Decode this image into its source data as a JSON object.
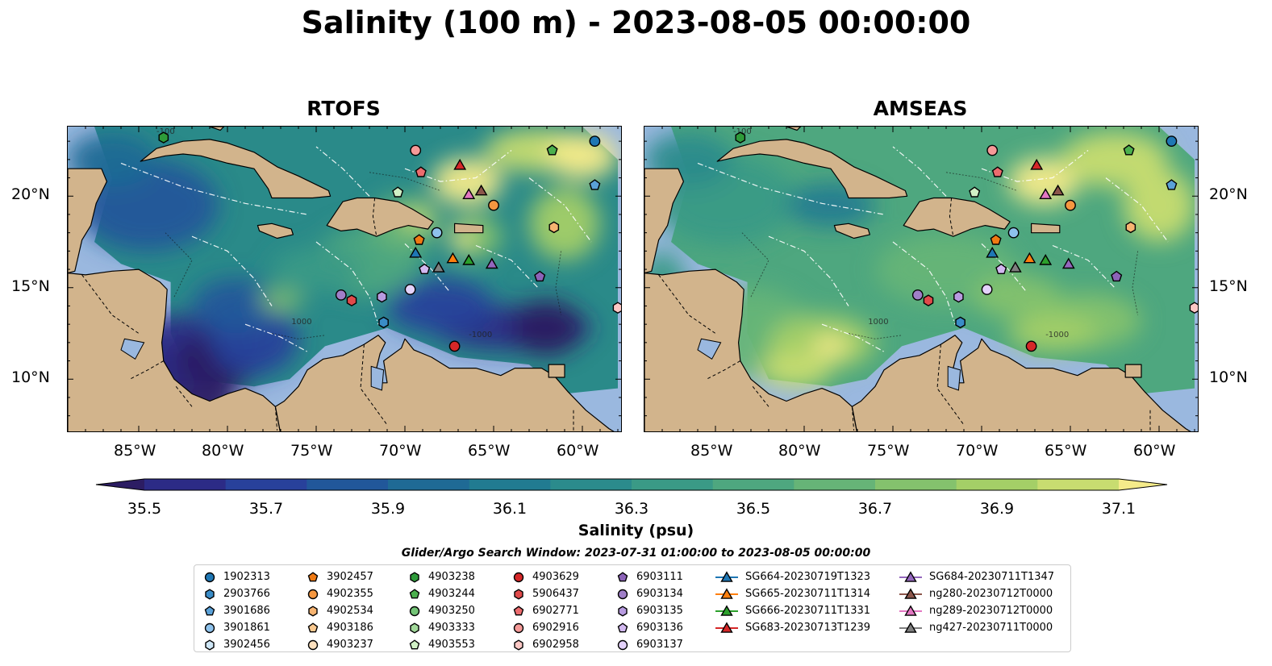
{
  "title": "Salinity (100 m) - 2023-08-05 00:00:00",
  "panels": [
    {
      "name": "RTOFS",
      "theme": "dark"
    },
    {
      "name": "AMSEAS",
      "theme": "light"
    }
  ],
  "axes": {
    "lat_ticks": [
      "20°N",
      "15°N",
      "10°N"
    ],
    "lon_ticks": [
      "85°W",
      "80°W",
      "75°W",
      "70°W",
      "65°W",
      "60°W"
    ]
  },
  "contour_labels": [
    "-1000",
    "1000",
    "-100"
  ],
  "colorbar": {
    "label": "Salinity (psu)",
    "ticks": [
      "35.5",
      "35.7",
      "35.9",
      "36.1",
      "36.3",
      "36.5",
      "36.7",
      "36.9",
      "37.1"
    ],
    "colors": [
      "#2c1d63",
      "#2c2b86",
      "#28419b",
      "#21579a",
      "#1f6a95",
      "#217b91",
      "#2b8b8c",
      "#3a9a86",
      "#4ea77f",
      "#66b477",
      "#84c26d",
      "#a4cf67",
      "#c8dc70",
      "#f5eb8a"
    ]
  },
  "search_window": "Glider/Argo Search Window: 2023-07-31 01:00:00 to 2023-08-05 00:00:00",
  "legend": [
    {
      "label": "1902313",
      "marker": "circle",
      "color": "#1f77b4"
    },
    {
      "label": "2903766",
      "marker": "hexagon",
      "color": "#3a8cc7"
    },
    {
      "label": "3901686",
      "marker": "pentagon",
      "color": "#5aa1d8"
    },
    {
      "label": "3901861",
      "marker": "circle",
      "color": "#8ec2ec"
    },
    {
      "label": "3902456",
      "marker": "hexagon",
      "color": "#cfe7f7"
    },
    {
      "label": "3902457",
      "marker": "pentagon",
      "color": "#f07a13"
    },
    {
      "label": "4902355",
      "marker": "circle",
      "color": "#f59740"
    },
    {
      "label": "4902534",
      "marker": "hexagon",
      "color": "#f7b471"
    },
    {
      "label": "4903186",
      "marker": "pentagon",
      "color": "#fbc98f"
    },
    {
      "label": "4903237",
      "marker": "circle",
      "color": "#fde1bf"
    },
    {
      "label": "4903238",
      "marker": "hexagon",
      "color": "#2e9b3a"
    },
    {
      "label": "4903244",
      "marker": "pentagon",
      "color": "#4cb04e"
    },
    {
      "label": "4903250",
      "marker": "circle",
      "color": "#73c476"
    },
    {
      "label": "4903333",
      "marker": "hexagon",
      "color": "#a2d99a"
    },
    {
      "label": "4903553",
      "marker": "pentagon",
      "color": "#d1f0c5"
    },
    {
      "label": "4903629",
      "marker": "circle",
      "color": "#d62728"
    },
    {
      "label": "5906437",
      "marker": "hexagon",
      "color": "#e04a4a"
    },
    {
      "label": "6902771",
      "marker": "pentagon",
      "color": "#ec6c6e"
    },
    {
      "label": "6902916",
      "marker": "circle",
      "color": "#f59a98"
    },
    {
      "label": "6902958",
      "marker": "hexagon",
      "color": "#fcc8c5"
    },
    {
      "label": "6903111",
      "marker": "pentagon",
      "color": "#8c63b8"
    },
    {
      "label": "6903134",
      "marker": "circle",
      "color": "#a07fc8"
    },
    {
      "label": "6903135",
      "marker": "hexagon",
      "color": "#b89be0"
    },
    {
      "label": "6903136",
      "marker": "pentagon",
      "color": "#d2b8f0"
    },
    {
      "label": "6903137",
      "marker": "circle",
      "color": "#e4d2fb"
    },
    {
      "label": "SG664-20230719T1323",
      "marker": "triangle",
      "color": "#1f77b4"
    },
    {
      "label": "SG665-20230711T1314",
      "marker": "triangle",
      "color": "#ff7f0e"
    },
    {
      "label": "SG666-20230711T1331",
      "marker": "triangle",
      "color": "#2ca02c"
    },
    {
      "label": "SG683-20230713T1239",
      "marker": "triangle",
      "color": "#d62728"
    },
    {
      "label": "SG684-20230711T1347",
      "marker": "triangle",
      "color": "#9467bd"
    },
    {
      "label": "ng280-20230712T0000",
      "marker": "triangle",
      "color": "#8c564b"
    },
    {
      "label": "ng289-20230712T0000",
      "marker": "triangle",
      "color": "#e377c2"
    },
    {
      "label": "ng427-20230711T0000",
      "marker": "triangle",
      "color": "#7f7f7f"
    }
  ],
  "observations": [
    {
      "lon": -59.3,
      "lat": 23.0,
      "legend": 0
    },
    {
      "lon": -71.2,
      "lat": 13.1,
      "legend": 1
    },
    {
      "lon": -59.3,
      "lat": 20.6,
      "legend": 2
    },
    {
      "lon": -68.2,
      "lat": 18.0,
      "legend": 3
    },
    {
      "lon": -73.6,
      "lat": 14.6,
      "legend": 21
    },
    {
      "lon": -73.0,
      "lat": 14.3,
      "legend": 16
    },
    {
      "lon": -71.3,
      "lat": 14.5,
      "legend": 22
    },
    {
      "lon": -69.7,
      "lat": 14.9,
      "legend": 24
    },
    {
      "lon": -68.9,
      "lat": 16.0,
      "legend": 23
    },
    {
      "lon": -69.2,
      "lat": 17.6,
      "legend": 5
    },
    {
      "lon": -69.1,
      "lat": 21.3,
      "legend": 17
    },
    {
      "lon": -69.4,
      "lat": 22.5,
      "legend": 18
    },
    {
      "lon": -70.4,
      "lat": 20.2,
      "legend": 14
    },
    {
      "lon": -65.0,
      "lat": 19.5,
      "legend": 6
    },
    {
      "lon": -61.6,
      "lat": 18.3,
      "legend": 7
    },
    {
      "lon": -61.7,
      "lat": 22.5,
      "legend": 11
    },
    {
      "lon": -62.4,
      "lat": 15.6,
      "legend": 20
    },
    {
      "lon": -58.0,
      "lat": 13.9,
      "legend": 19
    },
    {
      "lon": -67.2,
      "lat": 11.8,
      "legend": 15
    },
    {
      "lon": -83.6,
      "lat": 23.2,
      "legend": 10
    },
    {
      "lon": -69.4,
      "lat": 16.9,
      "legend": 25
    },
    {
      "lon": -67.3,
      "lat": 16.6,
      "legend": 26
    },
    {
      "lon": -66.4,
      "lat": 16.5,
      "legend": 27
    },
    {
      "lon": -66.9,
      "lat": 21.7,
      "legend": 28
    },
    {
      "lon": -65.1,
      "lat": 16.3,
      "legend": 29
    },
    {
      "lon": -65.7,
      "lat": 20.3,
      "legend": 30
    },
    {
      "lon": -66.4,
      "lat": 20.1,
      "legend": 31
    },
    {
      "lon": -68.1,
      "lat": 16.1,
      "legend": 32
    }
  ]
}
